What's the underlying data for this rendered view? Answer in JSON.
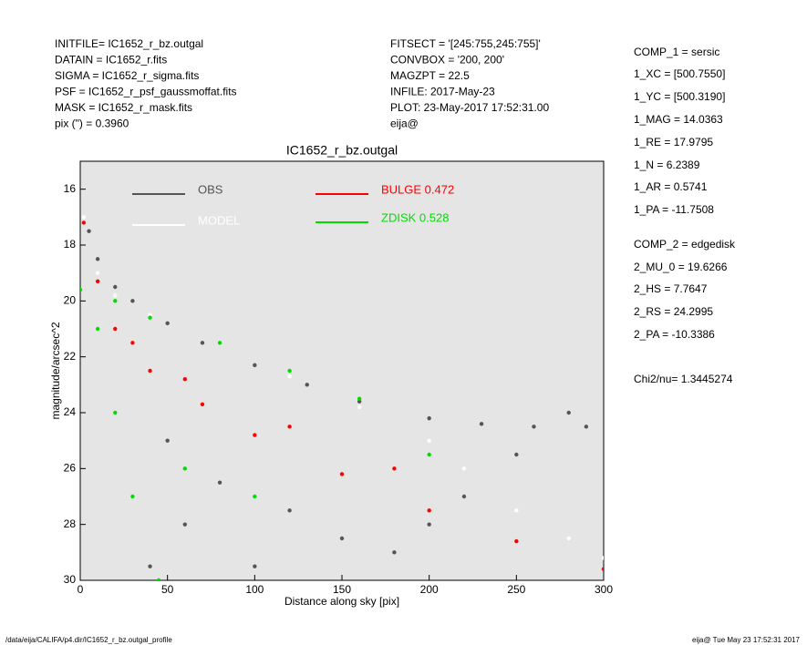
{
  "header": {
    "left": [
      "INITFILE= IC1652_r_bz.outgal",
      "DATAIN  = IC1652_r.fits",
      "SIGMA  = IC1652_r_sigma.fits",
      "PSF    = IC1652_r_psf_gaussmoffat.fits",
      "MASK   = IC1652_r_mask.fits",
      "pix (\") =  0.3960"
    ],
    "middle": [
      "FITSECT = '[245:755,245:755]'",
      "CONVBOX = '200, 200'",
      "MAGZPT  =             22.5",
      "INFILE: 2017-May-23",
      "PLOT: 23-May-2017 17:52:31.00",
      "eija@"
    ],
    "right": [
      "COMP_1  = sersic",
      "1_XC    = [500.7550]",
      "1_YC    = [500.3190]",
      "1_MAG   = 14.0363",
      "1_RE    = 17.9795",
      "1_N     = 6.2389",
      "1_AR    = 0.5741",
      "1_PA    = -11.7508",
      "COMP_2  = edgedisk",
      "2_MU_0  = 19.6266",
      "2_HS    = 7.7647",
      "2_RS    = 24.2995",
      "2_PA    = -10.3386",
      "Chi2/nu=       1.3445274"
    ]
  },
  "footer": {
    "left": "/data/eija/CALIFA/p4.dir/IC1652_r_bz.outgal_profile",
    "right": "eija@  Tue May 23 17:52:31 2017"
  },
  "chart_data": {
    "type": "scatter",
    "title": "IC1652_r_bz.outgal",
    "x_label": "Distance along sky [pix]",
    "y_label": "magnitude/arcsec^2",
    "xlim": [
      0,
      300
    ],
    "xticks": [
      0,
      50,
      100,
      150,
      200,
      250,
      300
    ],
    "ylim": [
      30,
      15
    ],
    "yticks": [
      16,
      18,
      20,
      22,
      24,
      26,
      28,
      30
    ],
    "series": [
      {
        "name": "OBS",
        "color": "#555555",
        "x": [
          5,
          10,
          20,
          30,
          50,
          70,
          100,
          130,
          160,
          200,
          230,
          260,
          290,
          50,
          80,
          120,
          150,
          180,
          220,
          250,
          280,
          40,
          60,
          100,
          200
        ],
        "values": [
          17.5,
          18.5,
          19.5,
          20,
          20.8,
          21.5,
          22.3,
          23,
          23.6,
          24.2,
          24.4,
          24.5,
          24.5,
          25,
          26.5,
          27.5,
          28.5,
          29,
          27,
          25.5,
          24,
          29.5,
          28,
          29.5,
          28
        ]
      },
      {
        "name": "MODEL",
        "color": "#ffffff",
        "x": [
          2,
          10,
          20,
          40,
          80,
          120,
          160,
          200,
          220,
          250,
          280,
          300
        ],
        "values": [
          17,
          19,
          19.8,
          20.5,
          21.5,
          22.7,
          23.8,
          25,
          26,
          27.5,
          28.5,
          29.2
        ]
      },
      {
        "name": "BULGE  0.472",
        "color": "#ff0000",
        "x": [
          2,
          10,
          20,
          40,
          70,
          100,
          150,
          200,
          250,
          300,
          30,
          60,
          120,
          180
        ],
        "values": [
          17.2,
          19.3,
          21,
          22.5,
          23.7,
          24.8,
          26.2,
          27.5,
          28.6,
          29.6,
          21.5,
          22.8,
          24.5,
          26
        ]
      },
      {
        "name": "ZDISK  0.528",
        "color": "#00dd00",
        "x": [
          0,
          20,
          40,
          80,
          120,
          160,
          200,
          10,
          20,
          30,
          45,
          60,
          100
        ],
        "values": [
          19.6,
          20,
          20.6,
          21.5,
          22.5,
          23.5,
          25.5,
          21,
          24,
          27,
          30,
          26,
          27
        ]
      }
    ]
  }
}
